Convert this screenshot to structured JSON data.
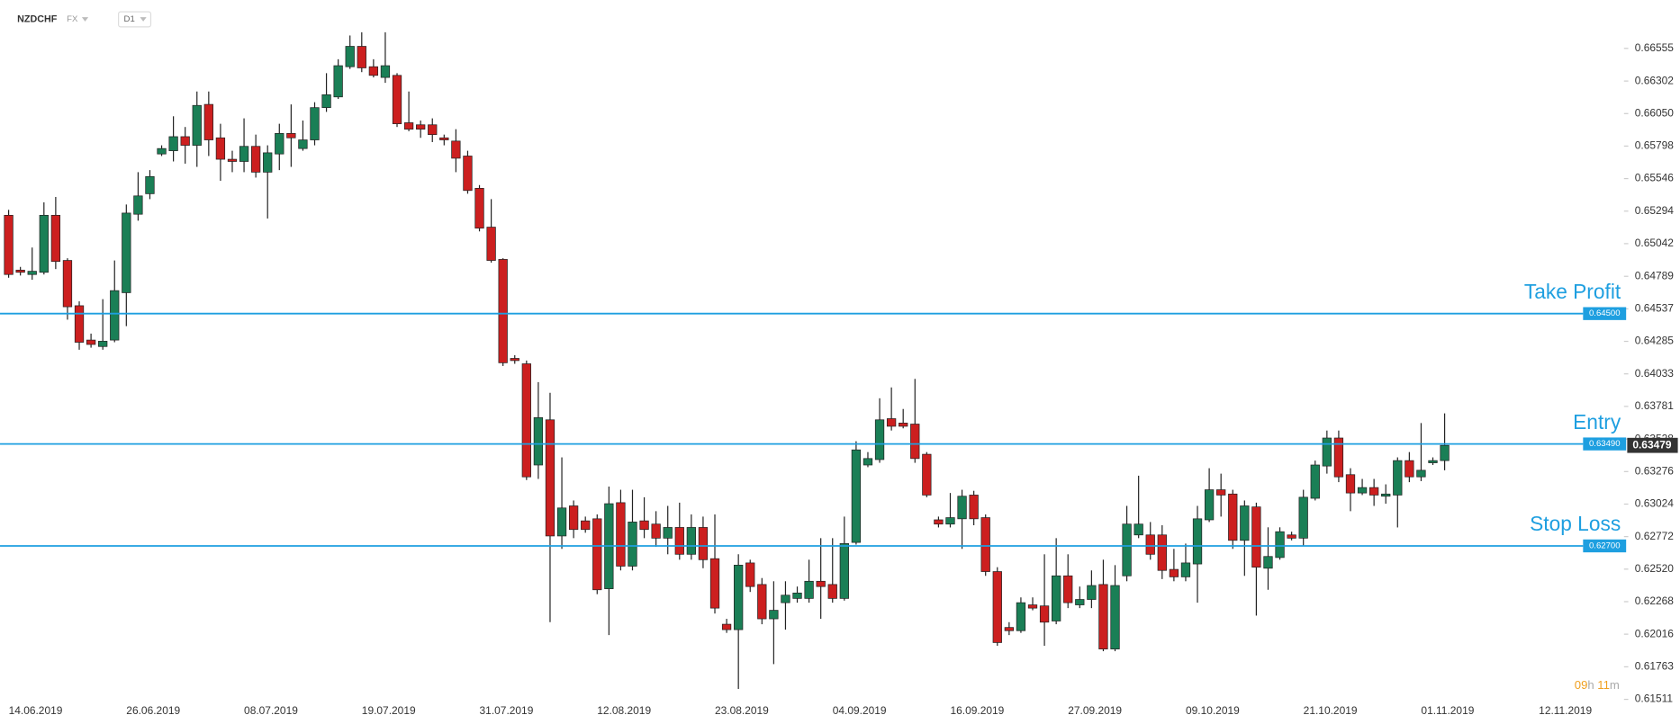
{
  "header": {
    "symbol": "NZDCHF",
    "market": "FX",
    "interval": "D1"
  },
  "timer": {
    "hours": "09",
    "hours_unit": "h",
    "minutes": "11",
    "minutes_unit": "m"
  },
  "chart_data": {
    "type": "candlestick",
    "up_color": "#1a7f56",
    "down_color": "#cc1f1f",
    "level_color": "#1e9fe0",
    "categories": [
      "14.06.2019",
      null,
      null,
      null,
      null,
      null,
      null,
      null,
      null,
      null,
      "26.06.2019",
      null,
      null,
      null,
      null,
      null,
      null,
      null,
      null,
      null,
      "08.07.2019",
      null,
      null,
      null,
      null,
      null,
      null,
      null,
      null,
      null,
      "19.07.2019",
      null,
      null,
      null,
      null,
      null,
      null,
      null,
      null,
      null,
      "31.07.2019",
      null,
      null,
      null,
      null,
      null,
      null,
      null,
      null,
      null,
      "12.08.2019",
      null,
      null,
      null,
      null,
      null,
      null,
      null,
      null,
      null,
      "23.08.2019",
      null,
      null,
      null,
      null,
      null,
      null,
      null,
      null,
      null,
      "04.09.2019",
      null,
      null,
      null,
      null,
      null,
      null,
      null,
      null,
      null,
      "16.09.2019",
      null,
      null,
      null,
      null,
      null,
      null,
      null,
      null,
      null,
      "27.09.2019",
      null,
      null,
      null,
      null,
      null,
      null,
      null,
      null,
      null,
      "09.10.2019",
      null,
      null,
      null,
      null,
      null,
      null,
      null,
      null,
      null,
      "21.10.2019",
      null,
      null,
      null,
      null,
      null,
      null,
      null,
      null,
      null,
      "01.11.2019",
      null,
      null,
      null,
      null,
      null,
      null,
      null,
      null,
      null,
      "12.11.2019"
    ],
    "open": [
      0.65262,
      0.64837,
      0.64803,
      0.6482,
      0.65262,
      0.64912,
      0.64561,
      0.64295,
      0.64245,
      0.64295,
      0.64662,
      0.6527,
      0.65429,
      0.65737,
      0.65762,
      0.65871,
      0.65804,
      0.66121,
      0.65862,
      0.65696,
      0.65679,
      0.65796,
      0.65596,
      0.65737,
      0.65896,
      0.65779,
      0.65846,
      0.66096,
      0.66179,
      0.66413,
      0.66571,
      0.66413,
      0.6633,
      0.66346,
      0.65979,
      0.65963,
      0.65963,
      0.65862,
      0.65837,
      0.65721,
      0.65471,
      0.6517,
      0.6492,
      0.64153,
      0.64111,
      0.63327,
      0.63677,
      0.62777,
      0.6301,
      0.62894,
      0.6291,
      0.62368,
      0.63035,
      0.62543,
      0.62894,
      0.62869,
      0.6276,
      0.62843,
      0.62635,
      0.62843,
      0.62601,
      0.62093,
      0.62051,
      0.62568,
      0.62401,
      0.62135,
      0.6226,
      0.62293,
      0.62293,
      0.62426,
      0.62401,
      0.62293,
      0.62727,
      0.63327,
      0.63369,
      0.63686,
      0.63652,
      0.63644,
      0.6341,
      0.62902,
      0.62869,
      0.6291,
      0.63094,
      0.62919,
      0.62501,
      0.62068,
      0.62043,
      0.62243,
      0.62235,
      0.62118,
      0.62468,
      0.62243,
      0.62285,
      0.62401,
      0.61901,
      0.62468,
      0.62785,
      0.62785,
      0.62785,
      0.62518,
      0.6246,
      0.6256,
      0.62902,
      0.63135,
      0.63102,
      0.62743,
      0.63002,
      0.62527,
      0.6261,
      0.62785,
      0.6276,
      0.63069,
      0.63319,
      0.63536,
      0.63252,
      0.6311,
      0.63152,
      0.63085,
      0.63094,
      0.63361,
      0.63235,
      0.63344,
      0.63361,
      null,
      null,
      null,
      null,
      null,
      null,
      null,
      null
    ],
    "high": [
      0.65304,
      0.64862,
      0.65012,
      0.65362,
      0.65404,
      0.64929,
      0.64595,
      0.64345,
      0.64612,
      0.64912,
      0.65345,
      0.65596,
      0.65612,
      0.65804,
      0.66029,
      0.65946,
      0.66221,
      0.66221,
      0.65971,
      0.65762,
      0.66013,
      0.65887,
      0.65804,
      0.65971,
      0.66121,
      0.65996,
      0.66138,
      0.66363,
      0.66471,
      0.66655,
      0.6668,
      0.66471,
      0.6668,
      0.66363,
      0.66221,
      0.65996,
      0.66013,
      0.65887,
      0.65929,
      0.65762,
      0.65496,
      0.65387,
      0.64929,
      0.64178,
      0.64136,
      0.63969,
      0.63886,
      0.63386,
      0.63052,
      0.62927,
      0.62944,
      0.6316,
      0.63135,
      0.63135,
      0.63077,
      0.62969,
      0.6301,
      0.63035,
      0.62944,
      0.62927,
      0.62944,
      0.62135,
      0.62635,
      0.62593,
      0.62451,
      0.62426,
      0.62426,
      0.62385,
      0.62593,
      0.6276,
      0.6276,
      0.62927,
      0.63511,
      0.63427,
      0.63844,
      0.63928,
      0.63761,
      0.63994,
      0.63427,
      0.62927,
      0.6311,
      0.63135,
      0.63127,
      0.62944,
      0.62535,
      0.62109,
      0.62301,
      0.62301,
      0.62635,
      0.6276,
      0.62635,
      0.62385,
      0.6251,
      0.62593,
      0.62551,
      0.6301,
      0.63244,
      0.62885,
      0.6286,
      0.62677,
      0.62718,
      0.6301,
      0.63302,
      0.6326,
      0.63135,
      0.63052,
      0.63035,
      0.62844,
      0.62844,
      0.6281,
      0.63135,
      0.63361,
      0.63594,
      0.63594,
      0.63302,
      0.63219,
      0.63219,
      0.63177,
      0.63386,
      0.63427,
      0.63652,
      0.63386,
      0.63727,
      null,
      null,
      null,
      null,
      null,
      null,
      null,
      null
    ],
    "low": [
      0.64778,
      0.64795,
      0.64762,
      0.64803,
      0.64845,
      0.64453,
      0.6422,
      0.64236,
      0.6422,
      0.64278,
      0.64403,
      0.6522,
      0.65387,
      0.65721,
      0.65679,
      0.65662,
      0.65637,
      0.65721,
      0.65529,
      0.65596,
      0.65596,
      0.65554,
      0.65237,
      0.65612,
      0.65637,
      0.65762,
      0.65804,
      0.66063,
      0.66163,
      0.66396,
      0.66371,
      0.6633,
      0.66288,
      0.65946,
      0.65913,
      0.65862,
      0.65829,
      0.65804,
      0.65596,
      0.65429,
      0.65137,
      0.64895,
      0.64094,
      0.64111,
      0.6321,
      0.63219,
      0.62109,
      0.62677,
      0.6276,
      0.62802,
      0.62326,
      0.62009,
      0.6251,
      0.6251,
      0.6276,
      0.62693,
      0.62635,
      0.62593,
      0.62593,
      0.62527,
      0.62176,
      0.62026,
      0.61592,
      0.62343,
      0.62093,
      0.61784,
      0.62051,
      0.6226,
      0.6226,
      0.62135,
      0.6226,
      0.62276,
      0.6271,
      0.6331,
      0.63344,
      0.63594,
      0.63611,
      0.63344,
      0.63077,
      0.62843,
      0.62843,
      0.62677,
      0.6286,
      0.62468,
      0.61926,
      0.62009,
      0.62026,
      0.62201,
      0.61926,
      0.62093,
      0.62218,
      0.62218,
      0.62218,
      0.61884,
      0.61884,
      0.62426,
      0.6276,
      0.62593,
      0.62443,
      0.62426,
      0.62426,
      0.6226,
      0.62885,
      0.62927,
      0.62677,
      0.62468,
      0.6216,
      0.6236,
      0.62593,
      0.62743,
      0.62702,
      0.63052,
      0.6326,
      0.63194,
      0.62969,
      0.63094,
      0.6301,
      0.63027,
      0.62843,
      0.63194,
      0.63202,
      0.63327,
      0.63286,
      null,
      null,
      null,
      null,
      null,
      null,
      null,
      null
    ],
    "close": [
      0.64803,
      0.6482,
      0.64828,
      0.65262,
      0.64904,
      0.64553,
      0.64278,
      0.64261,
      0.64286,
      0.64678,
      0.65279,
      0.65412,
      0.65562,
      0.65779,
      0.65871,
      0.65804,
      0.66113,
      0.65846,
      0.65696,
      0.65679,
      0.65796,
      0.65596,
      0.65746,
      0.65896,
      0.65862,
      0.65846,
      0.66096,
      0.66196,
      0.66421,
      0.66571,
      0.66404,
      0.66346,
      0.66421,
      0.65971,
      0.65929,
      0.65929,
      0.65887,
      0.65846,
      0.65704,
      0.65454,
      0.65162,
      0.64912,
      0.64119,
      0.64136,
      0.63235,
      0.63694,
      0.62777,
      0.62994,
      0.62827,
      0.62827,
      0.6236,
      0.63027,
      0.62543,
      0.62885,
      0.62827,
      0.6276,
      0.62843,
      0.62635,
      0.62843,
      0.62593,
      0.62218,
      0.62051,
      0.62551,
      0.62385,
      0.62135,
      0.62201,
      0.62318,
      0.62335,
      0.62426,
      0.62385,
      0.62293,
      0.62718,
      0.63444,
      0.63377,
      0.63677,
      0.63627,
      0.63627,
      0.63377,
      0.63094,
      0.62869,
      0.62919,
      0.63085,
      0.6291,
      0.62501,
      0.61951,
      0.62043,
      0.6226,
      0.62218,
      0.62109,
      0.62468,
      0.6226,
      0.62285,
      0.62393,
      0.61901,
      0.62393,
      0.62869,
      0.62869,
      0.62635,
      0.6251,
      0.6246,
      0.62568,
      0.6291,
      0.63135,
      0.63094,
      0.62743,
      0.6301,
      0.62535,
      0.62618,
      0.6281,
      0.6276,
      0.63077,
      0.63327,
      0.63536,
      0.63235,
      0.6311,
      0.63152,
      0.63094,
      0.63102,
      0.63361,
      0.63235,
      0.63286,
      0.63361,
      0.63479,
      null,
      null,
      null,
      null,
      null,
      null,
      null,
      null
    ],
    "ylim": [
      0.6147,
      0.6693
    ],
    "yticks": [
      0.66555,
      0.66302,
      {
        "value": 0.6605,
        "label": "0.66050"
      },
      0.65798,
      0.65546,
      0.65294,
      0.65042,
      0.64789,
      0.64537,
      0.64285,
      0.64033,
      0.63781,
      0.63528,
      0.63276,
      0.63024,
      0.62772,
      {
        "value": 0.6252,
        "label": "0.62520"
      },
      0.62268,
      0.62016,
      0.61763,
      0.61511
    ],
    "levels": [
      {
        "name": "Take Profit",
        "value": 0.645,
        "label": "0.64500"
      },
      {
        "name": "Entry",
        "value": 0.6349,
        "label": "0.63490"
      },
      {
        "name": "Stop Loss",
        "value": 0.627,
        "label": "0.62700"
      }
    ],
    "last_price": 0.63479
  }
}
